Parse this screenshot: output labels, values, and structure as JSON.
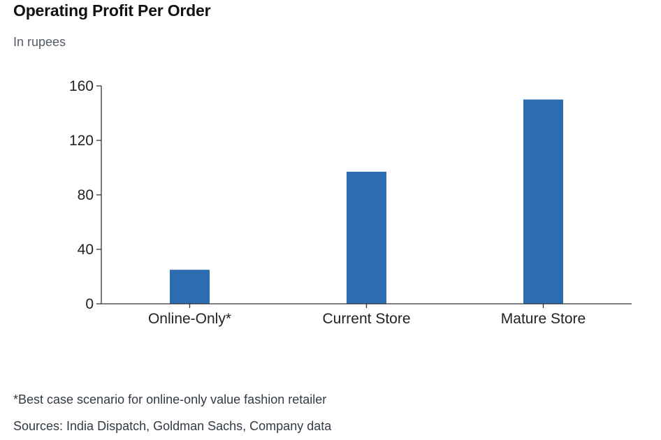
{
  "header": {
    "title": "Operating Profit Per Order",
    "subtitle": "In rupees"
  },
  "footer": {
    "note": "*Best case scenario for online-only value fashion retailer",
    "sources": "Sources: India Dispatch, Goldman Sachs, Company data"
  },
  "colors": {
    "bar": "#2c6db1",
    "axis": "#333333"
  },
  "chart_data": {
    "type": "bar",
    "title": "Operating Profit Per Order",
    "subtitle": "In rupees",
    "categories": [
      "Online-Only*",
      "Current Store",
      "Mature Store"
    ],
    "values": [
      25,
      97,
      150
    ],
    "ylim": [
      0,
      160
    ],
    "yticks": [
      0,
      40,
      80,
      120,
      160
    ],
    "xlabel": "",
    "ylabel": "",
    "grid": false,
    "legend": "none"
  }
}
